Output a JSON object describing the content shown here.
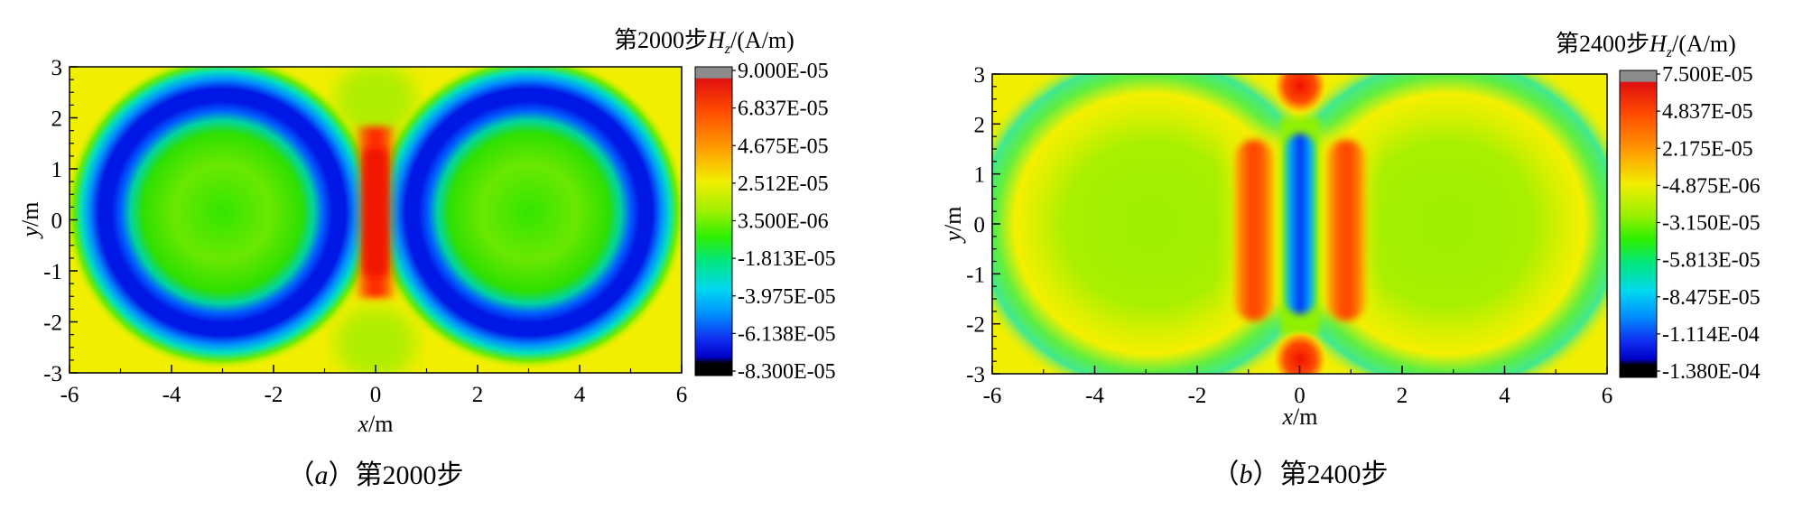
{
  "chart_data": [
    {
      "type": "heatmap",
      "title_prefix": "第2000步",
      "title_var": "H",
      "title_sub": "z",
      "title_unit": "/(A/m)",
      "xlabel_var": "x",
      "xlabel_unit": "/m",
      "ylabel_var": "y",
      "ylabel_unit": "/m",
      "xlim": [
        -6,
        6
      ],
      "ylim": [
        -3,
        3
      ],
      "x_ticks": [
        "-6",
        "-4",
        "-2",
        "0",
        "2",
        "4",
        "6"
      ],
      "y_ticks": [
        "-3",
        "-2",
        "-1",
        "0",
        "1",
        "2",
        "3"
      ],
      "colorbar_labels": [
        "9.000E-05",
        "6.837E-05",
        "4.675E-05",
        "2.512E-05",
        "3.500E-06",
        "-1.813E-05",
        "-3.975E-05",
        "-6.138E-05",
        "-8.300E-05"
      ],
      "caption_label": "a",
      "caption_text": "第2000步"
    },
    {
      "type": "heatmap",
      "title_prefix": "第2400步",
      "title_var": "H",
      "title_sub": "z",
      "title_unit": "/(A/m)",
      "xlabel_var": "x",
      "xlabel_unit": "/m",
      "ylabel_var": "y",
      "ylabel_unit": "/m",
      "xlim": [
        -6,
        6
      ],
      "ylim": [
        -3,
        3
      ],
      "x_ticks": [
        "-6",
        "-4",
        "-2",
        "0",
        "2",
        "4",
        "6"
      ],
      "y_ticks": [
        "-3",
        "-2",
        "-1",
        "0",
        "1",
        "2",
        "3"
      ],
      "colorbar_labels": [
        "7.500E-05",
        "4.837E-05",
        "2.175E-05",
        "-4.875E-06",
        "-3.150E-05",
        "-5.813E-05",
        "-8.475E-05",
        "-1.114E-04",
        "-1.380E-04"
      ],
      "caption_label": "b",
      "caption_text": "第2400步"
    }
  ]
}
